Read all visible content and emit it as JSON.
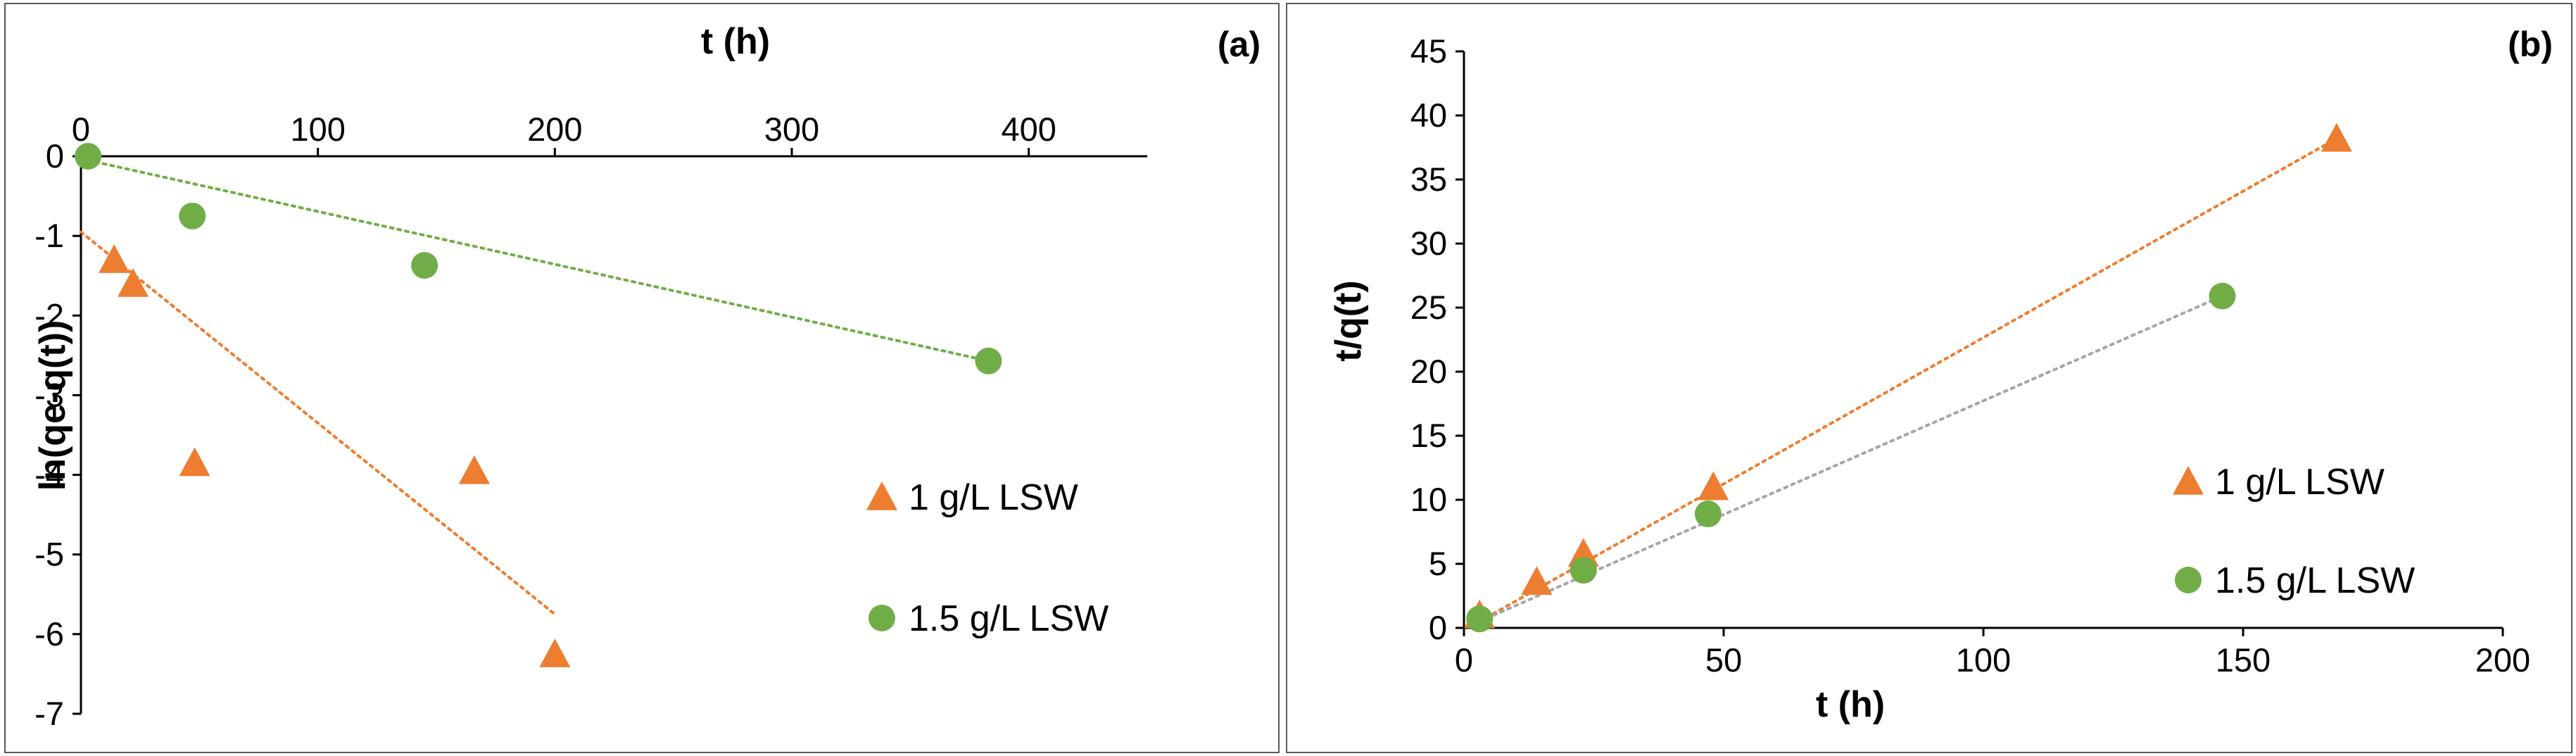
{
  "chart_data": [
    {
      "id": "a",
      "panel_label": "(a)",
      "type": "scatter",
      "title": "",
      "xlabel": "t (h)",
      "ylabel": "ln(qe-q(t))",
      "xlim": [
        0,
        450
      ],
      "ylim": [
        -7,
        0
      ],
      "x_ticks": [
        0,
        100,
        200,
        300,
        400
      ],
      "y_ticks": [
        0,
        -1,
        -2,
        -3,
        -4,
        -5,
        -6,
        -7
      ],
      "x_axis_position": "top",
      "grid": false,
      "legend_position": "right",
      "series": [
        {
          "name": "1 g/L LSW",
          "marker": "triangle",
          "color": "#ED7D31",
          "x": [
            14,
            22,
            48,
            166,
            200
          ],
          "y": [
            -1.3,
            -1.6,
            -3.85,
            -3.95,
            -6.25
          ],
          "trendline": {
            "x": [
              0,
              200
            ],
            "y": [
              -0.95,
              -5.75
            ]
          }
        },
        {
          "name": "1.5 g/L LSW",
          "marker": "circle",
          "color": "#70AD47",
          "x": [
            3,
            47,
            145,
            383
          ],
          "y": [
            0,
            -0.75,
            -1.37,
            -2.57
          ],
          "trendline": {
            "x": [
              3,
              383
            ],
            "y": [
              -0.05,
              -2.57
            ]
          }
        }
      ]
    },
    {
      "id": "b",
      "panel_label": "(b)",
      "type": "scatter",
      "title": "",
      "xlabel": "t (h)",
      "ylabel": "t/q(t)",
      "xlim": [
        0,
        200
      ],
      "ylim": [
        0,
        45
      ],
      "x_ticks": [
        0,
        50,
        100,
        150,
        200
      ],
      "y_ticks": [
        0,
        5,
        10,
        15,
        20,
        25,
        30,
        35,
        40,
        45
      ],
      "grid": false,
      "legend_position": "right",
      "series": [
        {
          "name": "1 g/L LSW",
          "marker": "triangle",
          "color": "#ED7D31",
          "x": [
            3,
            14,
            23,
            48,
            168
          ],
          "y": [
            1.0,
            3.6,
            5.8,
            11.0,
            38.2
          ],
          "trendline": {
            "x": [
              3,
              168
            ],
            "y": [
              0.5,
              38.2
            ],
            "color": "#ED7D31"
          }
        },
        {
          "name": "1.5 g/L LSW",
          "marker": "circle",
          "color": "#70AD47",
          "x": [
            3,
            23,
            47,
            146
          ],
          "y": [
            0.7,
            4.5,
            8.9,
            25.9
          ],
          "trendline": {
            "x": [
              3,
              146
            ],
            "y": [
              0.5,
              25.9
            ],
            "color": "#A6A6A6"
          }
        }
      ]
    }
  ]
}
